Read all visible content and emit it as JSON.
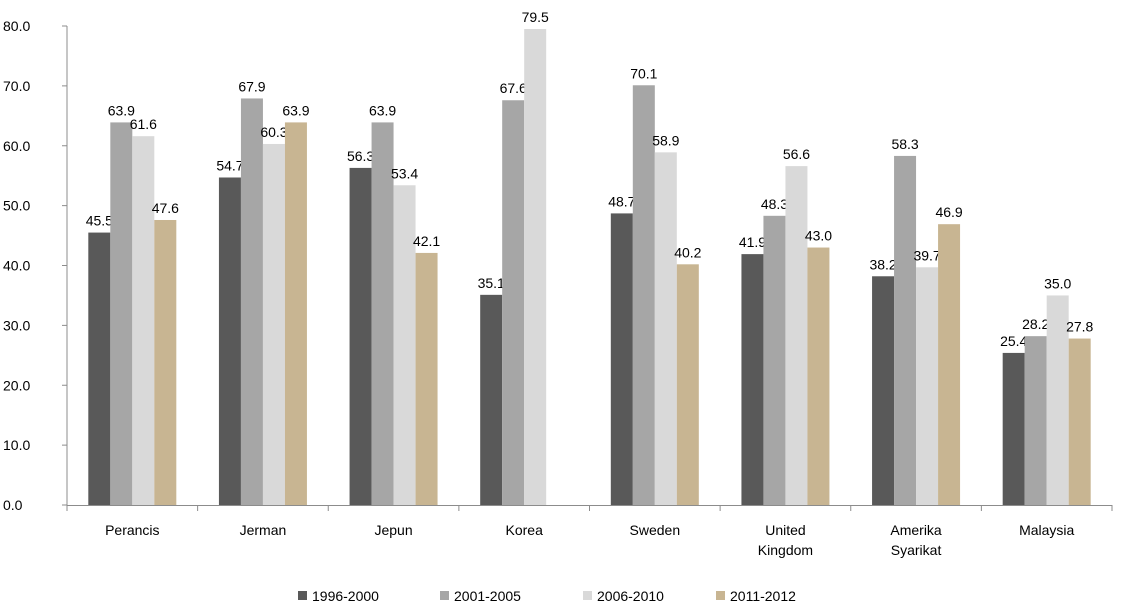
{
  "chart_data": {
    "type": "bar",
    "title": "",
    "xlabel": "",
    "ylabel": "",
    "ylim": [
      0,
      80
    ],
    "y_ticks": [
      "0.0",
      "10.0",
      "20.0",
      "30.0",
      "40.0",
      "50.0",
      "60.0",
      "70.0",
      "80.0"
    ],
    "grid": false,
    "legend_position": "bottom",
    "categories": [
      [
        "Perancis"
      ],
      [
        "Jerman"
      ],
      [
        "Jepun"
      ],
      [
        "Korea"
      ],
      [
        "Sweden"
      ],
      [
        "United",
        "Kingdom"
      ],
      [
        "Amerika",
        "Syarikat"
      ],
      [
        "Malaysia"
      ]
    ],
    "series": [
      {
        "name": "1996-2000",
        "color": "#595959",
        "values": [
          45.5,
          54.7,
          56.3,
          35.1,
          48.7,
          41.9,
          38.2,
          25.4
        ],
        "labels": [
          "45.5",
          "54.7",
          "56.3",
          "35.1",
          "48.7",
          "41.9",
          "38.2",
          "25.4"
        ]
      },
      {
        "name": "2001-2005",
        "color": "#a6a6a6",
        "values": [
          63.9,
          67.9,
          63.9,
          67.6,
          70.1,
          48.3,
          58.3,
          28.2
        ],
        "labels": [
          "63.9",
          "67.9",
          "63.9",
          "67.6",
          "70.1",
          "48.3",
          "58.3",
          "28.2"
        ]
      },
      {
        "name": "2006-2010",
        "color": "#d9d9d9",
        "values": [
          61.6,
          60.3,
          53.4,
          79.5,
          58.9,
          56.6,
          39.7,
          35.0
        ],
        "labels": [
          "61.6",
          "60.3",
          "53.4",
          "79.5",
          "58.9",
          "56.6",
          "39.7",
          "35.0"
        ]
      },
      {
        "name": "2011-2012",
        "color": "#c8b592",
        "values": [
          47.6,
          63.9,
          42.1,
          null,
          40.2,
          43.0,
          46.9,
          27.8
        ],
        "labels": [
          "47.6",
          "63.9",
          "42.1",
          null,
          "40.2",
          "43.0",
          "46.9",
          "27.8"
        ]
      }
    ]
  }
}
